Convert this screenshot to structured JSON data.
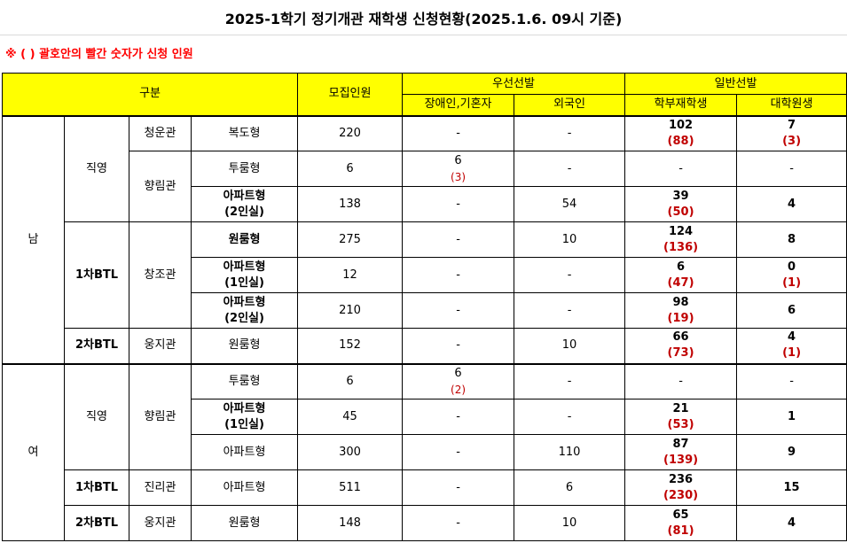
{
  "title": "2025-1학기 정기개관 재학생 신청현황(2025.1.6. 09시 기준)",
  "note": "※ ( ) 괄호안의 빨간 숫자가 신청 인원",
  "headers": {
    "category": "구분",
    "recruit": "모집인원",
    "priority": "우선선발",
    "priority_disabled": "장애인,기혼자",
    "priority_foreign": "외국인",
    "general": "일반선발",
    "general_undergrad": "학부재학생",
    "general_grad": "대학원생"
  },
  "groups": {
    "male": "남",
    "female": "여",
    "direct": "직영",
    "btl1": "1차BTL",
    "btl2": "2차BTL"
  },
  "rows": [
    {
      "building": "청운관",
      "type": "복도형",
      "recruit": "220",
      "disabled": "-",
      "disabled_app": "",
      "foreign": "-",
      "undergrad": "102",
      "undergrad_app": "(88)",
      "grad": "7",
      "grad_app": "(3)"
    },
    {
      "building": "향림관",
      "type": "투룸형",
      "recruit": "6",
      "disabled": "6",
      "disabled_app": "(3)",
      "foreign": "-",
      "undergrad": "-",
      "undergrad_app": "",
      "grad": "-",
      "grad_app": ""
    },
    {
      "building": "",
      "type": "아파트형\n(2인실)",
      "recruit": "138",
      "disabled": "-",
      "disabled_app": "",
      "foreign": "54",
      "undergrad": "39",
      "undergrad_app": "(50)",
      "grad": "4",
      "grad_app": ""
    },
    {
      "building": "창조관",
      "type": "원룸형",
      "recruit": "275",
      "disabled": "-",
      "disabled_app": "",
      "foreign": "10",
      "undergrad": "124",
      "undergrad_app": "(136)",
      "grad": "8",
      "grad_app": ""
    },
    {
      "building": "",
      "type": "아파트형\n(1인실)",
      "recruit": "12",
      "disabled": "-",
      "disabled_app": "",
      "foreign": "-",
      "undergrad": "6",
      "undergrad_app": "(47)",
      "grad": "0",
      "grad_app": "(1)"
    },
    {
      "building": "",
      "type": "아파트형\n(2인실)",
      "recruit": "210",
      "disabled": "-",
      "disabled_app": "",
      "foreign": "-",
      "undergrad": "98",
      "undergrad_app": "(19)",
      "grad": "6",
      "grad_app": ""
    },
    {
      "building": "웅지관",
      "type": "원룸형",
      "recruit": "152",
      "disabled": "-",
      "disabled_app": "",
      "foreign": "10",
      "undergrad": "66",
      "undergrad_app": "(73)",
      "grad": "4",
      "grad_app": "(1)"
    },
    {
      "building": "향림관",
      "type": "투룸형",
      "recruit": "6",
      "disabled": "6",
      "disabled_app": "(2)",
      "foreign": "-",
      "undergrad": "-",
      "undergrad_app": "",
      "grad": "-",
      "grad_app": ""
    },
    {
      "building": "",
      "type": "아파트형\n(1인실)",
      "recruit": "45",
      "disabled": "-",
      "disabled_app": "",
      "foreign": "-",
      "undergrad": "21",
      "undergrad_app": "(53)",
      "grad": "1",
      "grad_app": ""
    },
    {
      "building": "",
      "type": "아파트형",
      "recruit": "300",
      "disabled": "-",
      "disabled_app": "",
      "foreign": "110",
      "undergrad": "87",
      "undergrad_app": "(139)",
      "grad": "9",
      "grad_app": ""
    },
    {
      "building": "진리관",
      "type": "아파트형",
      "recruit": "511",
      "disabled": "-",
      "disabled_app": "",
      "foreign": "6",
      "undergrad": "236",
      "undergrad_app": "(230)",
      "grad": "15",
      "grad_app": ""
    },
    {
      "building": "웅지관",
      "type": "원룸형",
      "recruit": "148",
      "disabled": "-",
      "disabled_app": "",
      "foreign": "10",
      "undergrad": "65",
      "undergrad_app": "(81)",
      "grad": "4",
      "grad_app": ""
    }
  ]
}
